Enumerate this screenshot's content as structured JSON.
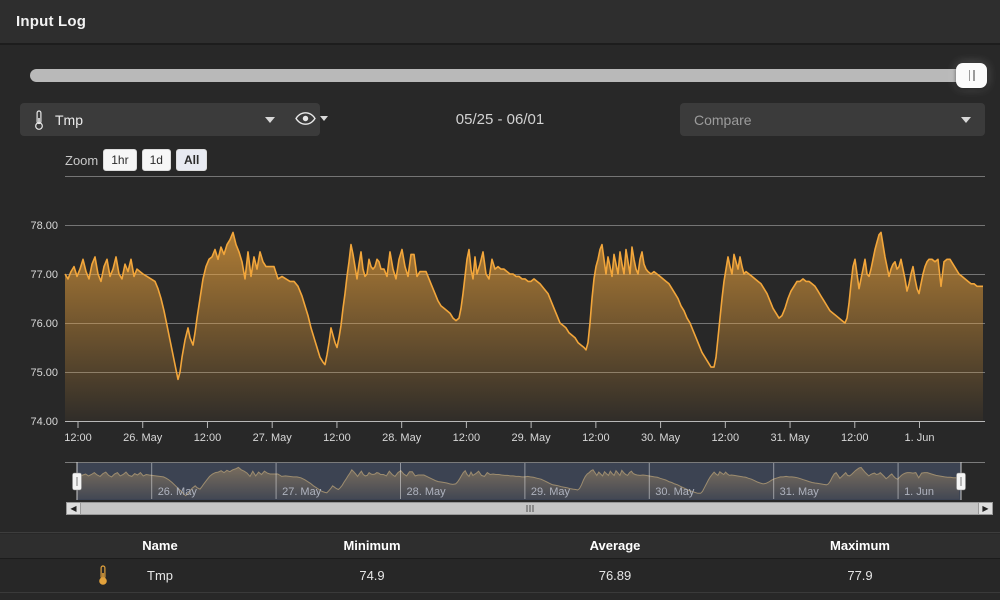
{
  "window": {
    "title": "Input Log"
  },
  "toolbar": {
    "series_select": {
      "value": "Tmp",
      "icon": "thermometer"
    },
    "visibility_select": {
      "icon": "eye"
    },
    "date_range": "05/25 - 06/01",
    "compare_select": {
      "placeholder": "Compare"
    }
  },
  "zoom_controls": {
    "label": "Zoom",
    "buttons": [
      {
        "label": "1hr",
        "selected": false
      },
      {
        "label": "1d",
        "selected": false
      },
      {
        "label": "All",
        "selected": true
      }
    ]
  },
  "stats_table": {
    "headers": [
      "Name",
      "Minimum",
      "Average",
      "Maximum"
    ],
    "rows": [
      {
        "icon": "thermometer",
        "name": "Tmp",
        "minimum": "74.9",
        "average": "76.89",
        "maximum": "77.9"
      }
    ]
  },
  "colors": {
    "accent_line": "#f2a63b",
    "area_fill_top": "rgba(242,166,59,0.68)",
    "area_fill_bottom": "rgba(242,166,59,0.04)",
    "nav_line": "#c9a259",
    "nav_fill_top": "rgba(215,160,72,0.55)",
    "nav_fill_bottom": "rgba(215,160,72,0.06)",
    "navigator_mask": "rgba(94,113,152,0.38)",
    "gridline": "#c2c2c2",
    "axis_text": "#d8d8d8",
    "nav_label": "#b4b8c4"
  },
  "chart_data": {
    "type": "area",
    "title": "",
    "series_name": "Tmp",
    "ylim": [
      74,
      79
    ],
    "y_tick_values": [
      78,
      77,
      76,
      75,
      74
    ],
    "y_tick_labels": [
      "78.00",
      "77.00",
      "76.00",
      "75.00",
      "74.00"
    ],
    "y_gridline_values": [
      79,
      78,
      77,
      76,
      75
    ],
    "x_tick_labels": [
      "12:00",
      "26. May",
      "12:00",
      "27. May",
      "12:00",
      "28. May",
      "12:00",
      "29. May",
      "12:00",
      "30. May",
      "12:00",
      "31. May",
      "12:00",
      "1. Jun"
    ],
    "x_range_label": "05/25 - 06/01",
    "navigator_labels": [
      "26. May",
      "27. May",
      "28. May",
      "29. May",
      "30. May",
      "31. May",
      "1. Jun"
    ],
    "legend": "off",
    "grid": "on",
    "stats": {
      "minimum": 74.9,
      "average": 76.89,
      "maximum": 77.9
    },
    "points": [
      [
        65,
        77.0
      ],
      [
        68,
        76.9
      ],
      [
        71,
        77.05
      ],
      [
        74,
        77.15
      ],
      [
        77,
        76.95
      ],
      [
        80,
        77.1
      ],
      [
        83,
        77.3
      ],
      [
        86,
        77.05
      ],
      [
        89,
        76.9
      ],
      [
        92,
        77.2
      ],
      [
        95,
        77.35
      ],
      [
        98,
        77.0
      ],
      [
        101,
        76.85
      ],
      [
        104,
        77.15
      ],
      [
        107,
        77.3
      ],
      [
        110,
        76.95
      ],
      [
        113,
        77.1
      ],
      [
        116,
        77.35
      ],
      [
        119,
        77.0
      ],
      [
        122,
        76.9
      ],
      [
        125,
        77.2
      ],
      [
        128,
        77.05
      ],
      [
        131,
        77.3
      ],
      [
        134,
        76.95
      ],
      [
        137,
        77.1
      ],
      [
        140,
        77.05
      ],
      [
        143,
        77.0
      ],
      [
        147,
        76.95
      ],
      [
        151,
        76.9
      ],
      [
        155,
        76.85
      ],
      [
        158,
        76.7
      ],
      [
        161,
        76.5
      ],
      [
        164,
        76.25
      ],
      [
        167,
        75.95
      ],
      [
        170,
        75.65
      ],
      [
        173,
        75.35
      ],
      [
        176,
        75.05
      ],
      [
        178,
        74.85
      ],
      [
        180,
        75.0
      ],
      [
        182,
        75.3
      ],
      [
        185,
        75.65
      ],
      [
        188,
        75.9
      ],
      [
        190,
        75.7
      ],
      [
        193,
        75.55
      ],
      [
        195,
        75.8
      ],
      [
        197,
        76.1
      ],
      [
        200,
        76.5
      ],
      [
        203,
        76.9
      ],
      [
        206,
        77.15
      ],
      [
        209,
        77.3
      ],
      [
        212,
        77.35
      ],
      [
        215,
        77.5
      ],
      [
        218,
        77.3
      ],
      [
        221,
        77.55
      ],
      [
        224,
        77.4
      ],
      [
        227,
        77.6
      ],
      [
        230,
        77.7
      ],
      [
        233,
        77.85
      ],
      [
        236,
        77.6
      ],
      [
        239,
        77.45
      ],
      [
        242,
        77.25
      ],
      [
        245,
        76.9
      ],
      [
        248,
        77.45
      ],
      [
        251,
        76.95
      ],
      [
        254,
        77.35
      ],
      [
        257,
        77.1
      ],
      [
        260,
        77.45
      ],
      [
        263,
        77.25
      ],
      [
        266,
        77.15
      ],
      [
        270,
        77.15
      ],
      [
        274,
        77.15
      ],
      [
        278,
        76.9
      ],
      [
        282,
        76.95
      ],
      [
        286,
        76.9
      ],
      [
        290,
        76.85
      ],
      [
        294,
        76.85
      ],
      [
        298,
        76.75
      ],
      [
        302,
        76.55
      ],
      [
        305,
        76.35
      ],
      [
        308,
        76.15
      ],
      [
        311,
        75.9
      ],
      [
        314,
        75.7
      ],
      [
        317,
        75.5
      ],
      [
        320,
        75.3
      ],
      [
        323,
        75.2
      ],
      [
        325,
        75.15
      ],
      [
        327,
        75.35
      ],
      [
        329,
        75.6
      ],
      [
        331,
        75.9
      ],
      [
        333,
        75.75
      ],
      [
        335,
        75.6
      ],
      [
        337,
        75.5
      ],
      [
        339,
        75.7
      ],
      [
        341,
        75.95
      ],
      [
        343,
        76.3
      ],
      [
        345,
        76.6
      ],
      [
        347,
        76.95
      ],
      [
        349,
        77.25
      ],
      [
        351,
        77.6
      ],
      [
        353,
        77.4
      ],
      [
        355,
        77.15
      ],
      [
        357,
        76.9
      ],
      [
        359,
        77.2
      ],
      [
        361,
        77.45
      ],
      [
        363,
        77.1
      ],
      [
        365,
        76.95
      ],
      [
        367,
        77.0
      ],
      [
        369,
        77.3
      ],
      [
        371,
        77.15
      ],
      [
        373,
        77.1
      ],
      [
        375,
        77.15
      ],
      [
        377,
        77.3
      ],
      [
        379,
        77.25
      ],
      [
        381,
        77.1
      ],
      [
        384,
        77.1
      ],
      [
        387,
        76.95
      ],
      [
        390,
        77.45
      ],
      [
        393,
        77.1
      ],
      [
        396,
        76.9
      ],
      [
        399,
        77.3
      ],
      [
        402,
        77.5
      ],
      [
        405,
        77.15
      ],
      [
        408,
        76.95
      ],
      [
        411,
        77.4
      ],
      [
        414,
        77.4
      ],
      [
        417,
        76.95
      ],
      [
        420,
        77.05
      ],
      [
        423,
        77.05
      ],
      [
        426,
        77.05
      ],
      [
        429,
        76.9
      ],
      [
        432,
        76.75
      ],
      [
        435,
        76.6
      ],
      [
        438,
        76.45
      ],
      [
        441,
        76.35
      ],
      [
        444,
        76.3
      ],
      [
        447,
        76.25
      ],
      [
        450,
        76.2
      ],
      [
        453,
        76.1
      ],
      [
        456,
        76.05
      ],
      [
        459,
        76.1
      ],
      [
        461,
        76.3
      ],
      [
        463,
        76.6
      ],
      [
        465,
        76.95
      ],
      [
        467,
        77.3
      ],
      [
        469,
        77.5
      ],
      [
        471,
        77.1
      ],
      [
        473,
        76.9
      ],
      [
        475,
        77.35
      ],
      [
        477,
        77.0
      ],
      [
        480,
        77.2
      ],
      [
        483,
        77.45
      ],
      [
        486,
        77.0
      ],
      [
        489,
        76.9
      ],
      [
        492,
        77.3
      ],
      [
        495,
        77.1
      ],
      [
        498,
        77.15
      ],
      [
        501,
        77.1
      ],
      [
        504,
        77.1
      ],
      [
        507,
        77.05
      ],
      [
        510,
        77.0
      ],
      [
        513,
        77.0
      ],
      [
        516,
        76.95
      ],
      [
        519,
        76.95
      ],
      [
        522,
        76.9
      ],
      [
        525,
        76.9
      ],
      [
        528,
        76.85
      ],
      [
        531,
        76.85
      ],
      [
        534,
        76.9
      ],
      [
        537,
        76.85
      ],
      [
        540,
        76.8
      ],
      [
        544,
        76.7
      ],
      [
        548,
        76.6
      ],
      [
        551,
        76.45
      ],
      [
        554,
        76.3
      ],
      [
        557,
        76.15
      ],
      [
        560,
        76.0
      ],
      [
        563,
        75.95
      ],
      [
        566,
        75.9
      ],
      [
        569,
        75.8
      ],
      [
        572,
        75.75
      ],
      [
        575,
        75.7
      ],
      [
        578,
        75.6
      ],
      [
        581,
        75.55
      ],
      [
        584,
        75.5
      ],
      [
        586,
        75.45
      ],
      [
        588,
        75.6
      ],
      [
        590,
        76.0
      ],
      [
        592,
        76.5
      ],
      [
        594,
        76.9
      ],
      [
        596,
        77.15
      ],
      [
        598,
        77.3
      ],
      [
        600,
        77.5
      ],
      [
        602,
        77.6
      ],
      [
        604,
        77.3
      ],
      [
        606,
        77.0
      ],
      [
        608,
        77.35
      ],
      [
        610,
        77.15
      ],
      [
        612,
        76.95
      ],
      [
        614,
        77.4
      ],
      [
        616,
        77.2
      ],
      [
        618,
        77.0
      ],
      [
        620,
        77.45
      ],
      [
        622,
        77.2
      ],
      [
        624,
        77.0
      ],
      [
        626,
        77.5
      ],
      [
        628,
        77.25
      ],
      [
        630,
        77.0
      ],
      [
        632,
        77.55
      ],
      [
        634,
        77.3
      ],
      [
        636,
        77.1
      ],
      [
        638,
        77.0
      ],
      [
        640,
        77.3
      ],
      [
        642,
        77.45
      ],
      [
        644,
        77.2
      ],
      [
        646,
        77.1
      ],
      [
        648,
        77.05
      ],
      [
        651,
        77.0
      ],
      [
        654,
        77.05
      ],
      [
        657,
        77.0
      ],
      [
        660,
        76.95
      ],
      [
        663,
        76.9
      ],
      [
        666,
        76.85
      ],
      [
        669,
        76.8
      ],
      [
        672,
        76.7
      ],
      [
        675,
        76.6
      ],
      [
        678,
        76.5
      ],
      [
        681,
        76.35
      ],
      [
        684,
        76.25
      ],
      [
        687,
        76.1
      ],
      [
        690,
        76.0
      ],
      [
        693,
        75.85
      ],
      [
        696,
        75.7
      ],
      [
        699,
        75.55
      ],
      [
        702,
        75.4
      ],
      [
        705,
        75.3
      ],
      [
        708,
        75.2
      ],
      [
        711,
        75.1
      ],
      [
        714,
        75.1
      ],
      [
        716,
        75.3
      ],
      [
        718,
        75.7
      ],
      [
        720,
        76.1
      ],
      [
        722,
        76.5
      ],
      [
        724,
        76.85
      ],
      [
        726,
        77.1
      ],
      [
        728,
        77.35
      ],
      [
        730,
        77.15
      ],
      [
        732,
        77.0
      ],
      [
        734,
        77.4
      ],
      [
        736,
        77.25
      ],
      [
        738,
        77.1
      ],
      [
        740,
        77.35
      ],
      [
        742,
        77.15
      ],
      [
        744,
        77.0
      ],
      [
        746,
        77.05
      ],
      [
        749,
        77.0
      ],
      [
        752,
        76.95
      ],
      [
        755,
        76.9
      ],
      [
        758,
        76.85
      ],
      [
        761,
        76.8
      ],
      [
        764,
        76.7
      ],
      [
        767,
        76.6
      ],
      [
        770,
        76.45
      ],
      [
        773,
        76.3
      ],
      [
        776,
        76.2
      ],
      [
        779,
        76.1
      ],
      [
        782,
        76.15
      ],
      [
        785,
        76.3
      ],
      [
        788,
        76.5
      ],
      [
        791,
        76.65
      ],
      [
        794,
        76.75
      ],
      [
        797,
        76.85
      ],
      [
        800,
        76.85
      ],
      [
        803,
        76.9
      ],
      [
        806,
        76.85
      ],
      [
        809,
        76.85
      ],
      [
        812,
        76.8
      ],
      [
        815,
        76.75
      ],
      [
        818,
        76.65
      ],
      [
        821,
        76.55
      ],
      [
        824,
        76.45
      ],
      [
        827,
        76.35
      ],
      [
        830,
        76.25
      ],
      [
        833,
        76.2
      ],
      [
        836,
        76.15
      ],
      [
        839,
        76.1
      ],
      [
        842,
        76.05
      ],
      [
        845,
        76.0
      ],
      [
        847,
        76.1
      ],
      [
        849,
        76.4
      ],
      [
        851,
        76.8
      ],
      [
        853,
        77.15
      ],
      [
        855,
        77.3
      ],
      [
        857,
        77.0
      ],
      [
        859,
        76.7
      ],
      [
        861,
        76.9
      ],
      [
        863,
        77.1
      ],
      [
        865,
        77.3
      ],
      [
        867,
        77.0
      ],
      [
        869,
        76.95
      ],
      [
        871,
        77.1
      ],
      [
        873,
        77.3
      ],
      [
        875,
        77.5
      ],
      [
        877,
        77.65
      ],
      [
        879,
        77.8
      ],
      [
        881,
        77.85
      ],
      [
        883,
        77.6
      ],
      [
        885,
        77.35
      ],
      [
        887,
        77.15
      ],
      [
        889,
        76.95
      ],
      [
        891,
        77.1
      ],
      [
        893,
        77.2
      ],
      [
        895,
        77.25
      ],
      [
        897,
        77.1
      ],
      [
        899,
        77.15
      ],
      [
        901,
        77.3
      ],
      [
        903,
        77.1
      ],
      [
        905,
        76.9
      ],
      [
        907,
        76.65
      ],
      [
        909,
        76.8
      ],
      [
        911,
        77.0
      ],
      [
        913,
        77.15
      ],
      [
        915,
        76.9
      ],
      [
        917,
        76.7
      ],
      [
        919,
        76.6
      ],
      [
        921,
        76.8
      ],
      [
        923,
        77.0
      ],
      [
        925,
        77.15
      ],
      [
        927,
        77.25
      ],
      [
        929,
        77.3
      ],
      [
        932,
        77.3
      ],
      [
        935,
        77.25
      ],
      [
        938,
        77.3
      ],
      [
        941,
        76.75
      ],
      [
        944,
        77.25
      ],
      [
        947,
        77.3
      ],
      [
        950,
        77.3
      ],
      [
        953,
        77.2
      ],
      [
        956,
        77.1
      ],
      [
        959,
        77.0
      ],
      [
        962,
        76.95
      ],
      [
        965,
        76.9
      ],
      [
        968,
        76.85
      ],
      [
        971,
        76.8
      ],
      [
        974,
        76.8
      ],
      [
        977,
        76.75
      ],
      [
        980,
        76.75
      ],
      [
        983,
        76.75
      ]
    ]
  }
}
